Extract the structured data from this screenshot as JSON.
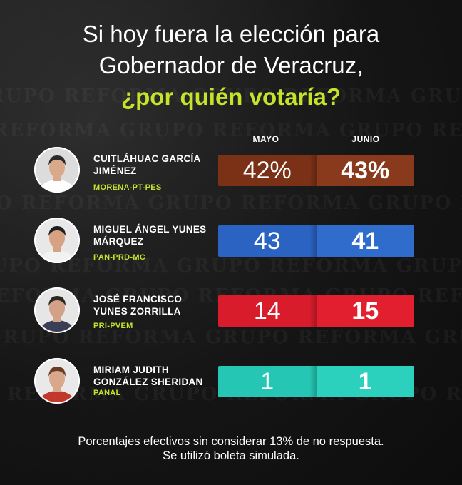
{
  "watermark": "GRUPO REFORMA   GRUPO REFORMA   GRUPO REFORMA   GRUPO REFORMA",
  "chart_data": {
    "type": "table",
    "title_lines": [
      "Si hoy fuera la elección para",
      "Gobernador de Veracruz,"
    ],
    "title_highlight": "¿por quién votaría?",
    "columns": [
      "MAYO",
      "JUNIO"
    ],
    "rows": [
      {
        "name_lines": [
          "CUITLÁHUAC GARCÍA",
          "JIMÉNEZ"
        ],
        "party": "MORENA-PT-PES",
        "values": [
          42,
          43
        ],
        "display": [
          "42%",
          "43%"
        ],
        "colors": [
          "#7b3116",
          "#8a3a1c"
        ],
        "avatar": {
          "skin": "#d9a98a",
          "hair": "#2b2b2b",
          "shirt": "#ffffff",
          "bg": "#dcdcdc"
        }
      },
      {
        "name_lines": [
          "MIGUEL ÁNGEL YUNES",
          "MÁRQUEZ"
        ],
        "party": "PAN-PRD-MC",
        "values": [
          43,
          41
        ],
        "display": [
          "43",
          "41"
        ],
        "colors": [
          "#2a63c2",
          "#2f6ccc"
        ],
        "avatar": {
          "skin": "#d6a283",
          "hair": "#1e1e1e",
          "shirt": "#f2f2f2",
          "bg": "#e8e8e8"
        }
      },
      {
        "name_lines": [
          "JOSÉ FRANCISCO",
          "YUNES ZORRILLA"
        ],
        "party": "PRI-PVEM",
        "values": [
          14,
          15
        ],
        "display": [
          "14",
          "15"
        ],
        "colors": [
          "#d91c2b",
          "#e21f2f"
        ],
        "avatar": {
          "skin": "#d2a187",
          "hair": "#2a2622",
          "shirt": "#3a3f55",
          "bg": "#e6e6e6"
        }
      },
      {
        "name_lines": [
          "MIRIAM JUDITH",
          "GONZÁLEZ SHERIDAN"
        ],
        "party": "PANAL",
        "values": [
          1,
          1
        ],
        "display": [
          "1",
          "1"
        ],
        "colors": [
          "#25c7b4",
          "#2bd1bd"
        ],
        "avatar": {
          "skin": "#d8a78c",
          "hair": "#6b3b24",
          "shirt": "#c0392b",
          "bg": "#e9e9e9"
        }
      }
    ],
    "footnote": [
      "Porcentajes efectivos sin considerar 13% de no respuesta.",
      "Se utilizó boleta simulada."
    ]
  }
}
